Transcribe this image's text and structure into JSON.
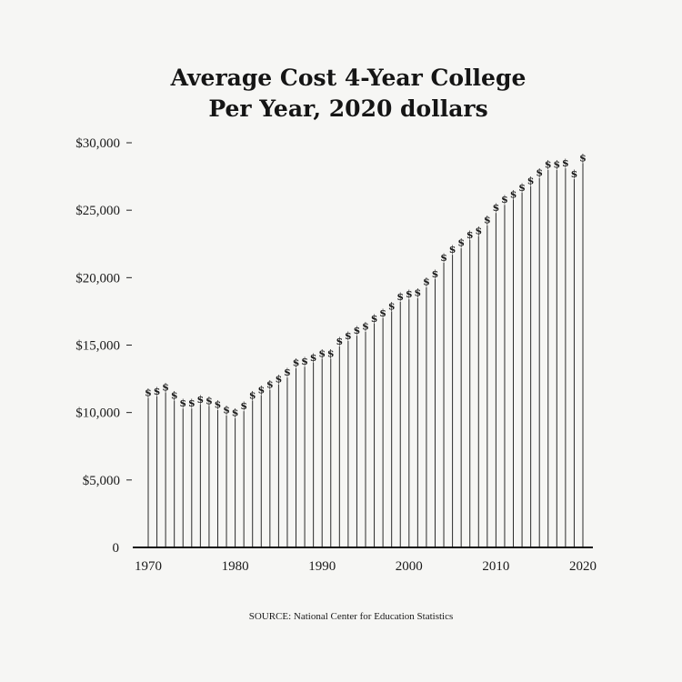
{
  "chart_data": {
    "type": "bar",
    "title_lines": [
      "Average Cost 4-Year College",
      "Per Year, 2020 dollars"
    ],
    "source": "SOURCE: National Center for Education Statistics",
    "marker": "$",
    "ylim": [
      0,
      30000
    ],
    "y_ticks": [
      {
        "value": 0,
        "label": "0"
      },
      {
        "value": 5000,
        "label": "$5,000"
      },
      {
        "value": 10000,
        "label": "$10,000"
      },
      {
        "value": 15000,
        "label": "$15,000"
      },
      {
        "value": 20000,
        "label": "$20,000"
      },
      {
        "value": 25000,
        "label": "$25,000"
      },
      {
        "value": 30000,
        "label": "$30,000"
      }
    ],
    "x_ticks": [
      1970,
      1980,
      1990,
      2000,
      2010,
      2020
    ],
    "grid": false,
    "years": [
      1970,
      1971,
      1972,
      1973,
      1974,
      1975,
      1976,
      1977,
      1978,
      1979,
      1980,
      1981,
      1982,
      1983,
      1984,
      1985,
      1986,
      1987,
      1988,
      1989,
      1990,
      1991,
      1992,
      1993,
      1994,
      1995,
      1996,
      1997,
      1998,
      1999,
      2000,
      2001,
      2002,
      2003,
      2004,
      2005,
      2006,
      2007,
      2008,
      2009,
      2010,
      2011,
      2012,
      2013,
      2014,
      2015,
      2016,
      2017,
      2018,
      2019,
      2020
    ],
    "values": [
      11100,
      11200,
      11500,
      10900,
      10300,
      10300,
      10600,
      10500,
      10200,
      9800,
      9600,
      10100,
      10900,
      11300,
      11700,
      12100,
      12600,
      13300,
      13400,
      13700,
      14000,
      14000,
      14900,
      15300,
      15700,
      16000,
      16600,
      17000,
      17500,
      18200,
      18400,
      18500,
      19300,
      19900,
      21100,
      21700,
      22200,
      22800,
      23100,
      23900,
      24800,
      25400,
      25800,
      26300,
      26800,
      27400,
      28000,
      28000,
      28100,
      27300,
      28500
    ]
  }
}
